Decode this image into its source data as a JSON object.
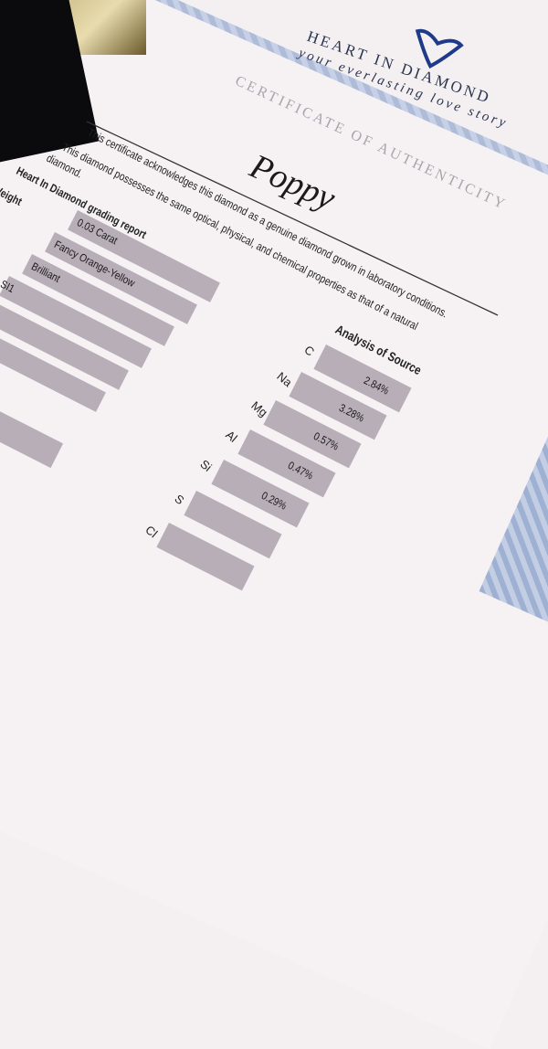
{
  "logo": {
    "name": "HEART IN DIAMOND",
    "tagline": "your everlasting love story",
    "icon": "heart-diamond-icon",
    "color": "#1f3a8a"
  },
  "certificate": {
    "title": "CERTIFICATE OF AUTHENTICITY",
    "name": "Poppy",
    "paragraph": [
      "This certificate acknowledges this diamond as a genuine diamond grown in laboratory conditions.",
      "This diamond possesses the same optical, physical, and chemical properties as that of a natural",
      "diamond."
    ]
  },
  "grading": {
    "title": "Heart In Diamond grading report",
    "label": "Weight",
    "values": [
      "0.03 Carat",
      "Fancy Orange-Yellow",
      "Brilliant",
      "SI1",
      "",
      ""
    ],
    "partial": "5"
  },
  "analysis": {
    "title": "Analysis of Source",
    "rows": [
      {
        "element": "C",
        "value": "2.84%"
      },
      {
        "element": "Na",
        "value": "3.28%"
      },
      {
        "element": "Mg",
        "value": "0.57%"
      },
      {
        "element": "Al",
        "value": "0.47%"
      },
      {
        "element": "Si",
        "value": "0.29%"
      },
      {
        "element": "S",
        "value": ""
      },
      {
        "element": "Cl",
        "value": ""
      }
    ]
  }
}
